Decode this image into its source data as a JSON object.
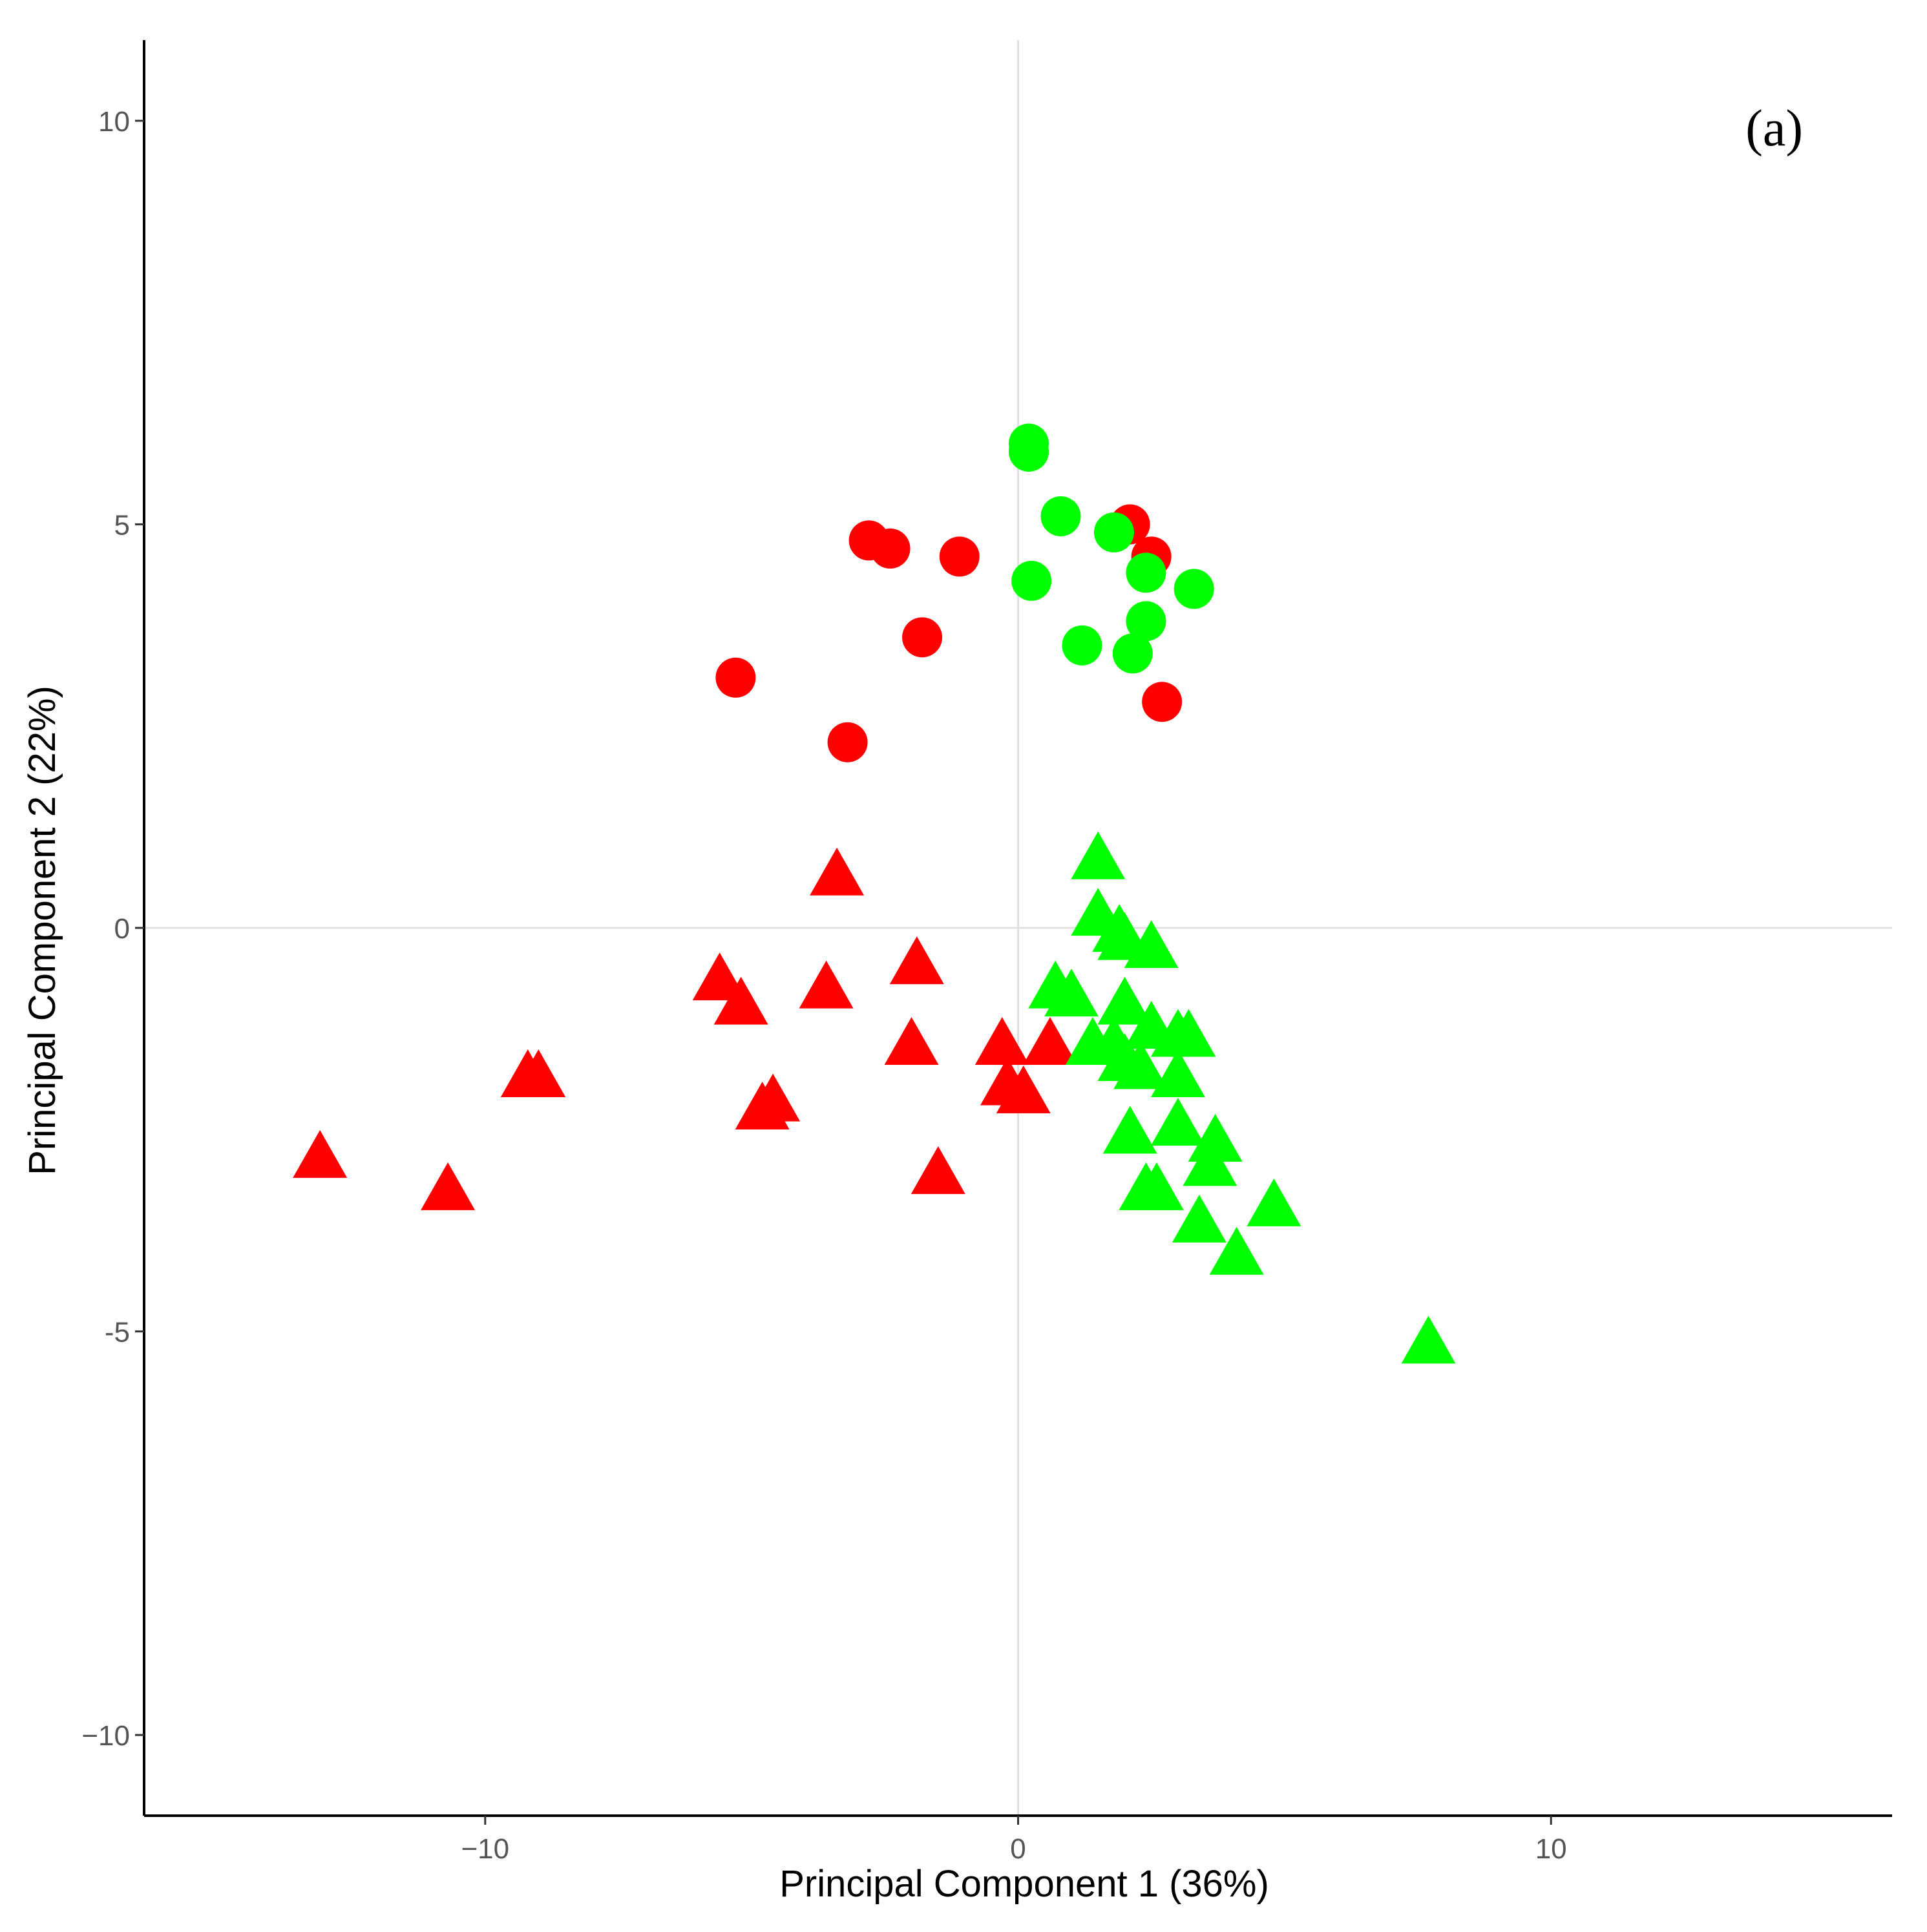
{
  "chart_data": {
    "type": "scatter",
    "panel_label": "(a)",
    "xlabel": "Principal Component 1 (36%)",
    "ylabel": "Principal Component 2 (22%)",
    "xlim": [
      -16.4,
      16.4
    ],
    "ylim": [
      -11,
      11
    ],
    "x_ticks": [
      {
        "v": -10,
        "label": "−10"
      },
      {
        "v": 0,
        "label": "0"
      },
      {
        "v": 10,
        "label": "10"
      }
    ],
    "y_ticks": [
      {
        "v": -10,
        "label": "−10"
      },
      {
        "v": -5,
        "label": "-5"
      },
      {
        "v": 0,
        "label": "0"
      },
      {
        "v": 5,
        "label": "5"
      },
      {
        "v": 10,
        "label": "10"
      }
    ],
    "zero_lines": true,
    "colors": {
      "red": "#ff0000",
      "green": "#00ff00",
      "axis": "#000000",
      "zero_line": "#e0e0e0"
    },
    "series": [
      {
        "name": "red-circles",
        "color": "#ff0000",
        "shape": "circle",
        "points": [
          [
            -5.3,
            3.1
          ],
          [
            -3.2,
            2.3
          ],
          [
            -2.8,
            4.8
          ],
          [
            -2.4,
            4.7
          ],
          [
            -1.8,
            3.6
          ],
          [
            -1.1,
            4.6
          ],
          [
            2.1,
            5.0
          ],
          [
            2.5,
            4.6
          ],
          [
            2.7,
            2.8
          ]
        ]
      },
      {
        "name": "green-circles",
        "color": "#00ff00",
        "shape": "circle",
        "points": [
          [
            0.2,
            6.0
          ],
          [
            0.2,
            5.9
          ],
          [
            0.8,
            5.1
          ],
          [
            1.8,
            4.9
          ],
          [
            0.25,
            4.3
          ],
          [
            2.4,
            4.4
          ],
          [
            3.3,
            4.2
          ],
          [
            2.4,
            3.8
          ],
          [
            1.2,
            3.5
          ],
          [
            2.15,
            3.4
          ]
        ]
      },
      {
        "name": "red-triangles",
        "color": "#ff0000",
        "shape": "triangle",
        "points": [
          [
            -3.4,
            0.6
          ],
          [
            -1.9,
            -0.5
          ],
          [
            -5.6,
            -0.7
          ],
          [
            -5.2,
            -1.0
          ],
          [
            -3.6,
            -0.8
          ],
          [
            -2.0,
            -1.5
          ],
          [
            -0.3,
            -1.5
          ],
          [
            0.6,
            -1.5
          ],
          [
            -0.2,
            -2.0
          ],
          [
            0.1,
            -2.1
          ],
          [
            -9.2,
            -1.9
          ],
          [
            -9.0,
            -1.9
          ],
          [
            -4.6,
            -2.2
          ],
          [
            -4.8,
            -2.3
          ],
          [
            -13.1,
            -2.9
          ],
          [
            -10.7,
            -3.3
          ],
          [
            -1.5,
            -3.1
          ]
        ]
      },
      {
        "name": "green-triangles",
        "color": "#00ff00",
        "shape": "triangle",
        "points": [
          [
            1.5,
            0.8
          ],
          [
            1.5,
            0.1
          ],
          [
            1.9,
            -0.1
          ],
          [
            2.0,
            -0.2
          ],
          [
            2.5,
            -0.3
          ],
          [
            0.7,
            -0.8
          ],
          [
            1.0,
            -0.9
          ],
          [
            2.0,
            -1.0
          ],
          [
            1.4,
            -1.5
          ],
          [
            1.8,
            -1.5
          ],
          [
            2.5,
            -1.3
          ],
          [
            3.0,
            -1.4
          ],
          [
            3.2,
            -1.4
          ],
          [
            2.0,
            -1.7
          ],
          [
            2.3,
            -1.8
          ],
          [
            3.0,
            -1.9
          ],
          [
            2.1,
            -2.6
          ],
          [
            3.0,
            -2.5
          ],
          [
            3.7,
            -2.7
          ],
          [
            3.6,
            -3.0
          ],
          [
            2.4,
            -3.3
          ],
          [
            2.6,
            -3.3
          ],
          [
            3.4,
            -3.7
          ],
          [
            4.8,
            -3.5
          ],
          [
            4.1,
            -4.1
          ],
          [
            7.7,
            -5.2
          ]
        ]
      }
    ]
  }
}
